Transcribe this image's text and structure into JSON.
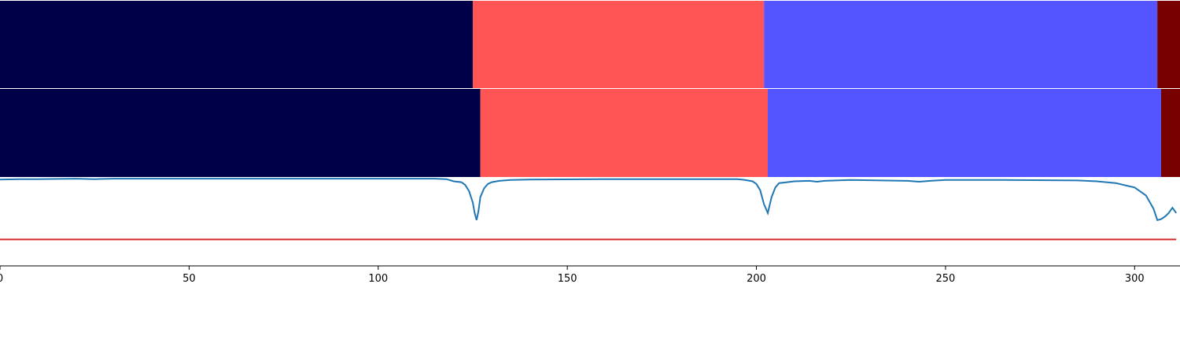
{
  "chart_data": {
    "type": "segmentation",
    "x_ticks": [
      0,
      50,
      100,
      150,
      200,
      250,
      300
    ],
    "xlim": [
      0,
      312
    ],
    "colors": {
      "class_0": "#000048",
      "class_1": "#ff5555",
      "class_2": "#5555ff",
      "class_3": "#780000",
      "curve": "#1f77b4",
      "threshold": "#d62728"
    },
    "bars": [
      {
        "segments": [
          {
            "start": 0,
            "end": 125,
            "class": "class_0"
          },
          {
            "start": 125,
            "end": 202,
            "class": "class_1"
          },
          {
            "start": 202,
            "end": 306,
            "class": "class_2"
          },
          {
            "start": 306,
            "end": 312,
            "class": "class_3"
          }
        ]
      },
      {
        "segments": [
          {
            "start": 0,
            "end": 127,
            "class": "class_0"
          },
          {
            "start": 127,
            "end": 203,
            "class": "class_1"
          },
          {
            "start": 203,
            "end": 307,
            "class": "class_2"
          },
          {
            "start": 307,
            "end": 312,
            "class": "class_3"
          }
        ]
      }
    ],
    "curve": {
      "ylim": [
        0,
        1
      ],
      "threshold": 0.3,
      "points": [
        [
          0,
          0.98
        ],
        [
          5,
          0.985
        ],
        [
          10,
          0.985
        ],
        [
          20,
          0.99
        ],
        [
          25,
          0.985
        ],
        [
          30,
          0.99
        ],
        [
          40,
          0.99
        ],
        [
          60,
          0.99
        ],
        [
          80,
          0.99
        ],
        [
          100,
          0.99
        ],
        [
          115,
          0.99
        ],
        [
          118,
          0.985
        ],
        [
          120,
          0.96
        ],
        [
          122,
          0.95
        ],
        [
          123,
          0.92
        ],
        [
          124,
          0.85
        ],
        [
          125,
          0.72
        ],
        [
          125.5,
          0.6
        ],
        [
          126,
          0.52
        ],
        [
          126.5,
          0.62
        ],
        [
          127,
          0.78
        ],
        [
          128,
          0.88
        ],
        [
          129,
          0.93
        ],
        [
          130,
          0.95
        ],
        [
          132,
          0.965
        ],
        [
          135,
          0.975
        ],
        [
          140,
          0.98
        ],
        [
          160,
          0.985
        ],
        [
          180,
          0.985
        ],
        [
          195,
          0.985
        ],
        [
          197,
          0.975
        ],
        [
          199,
          0.96
        ],
        [
          200,
          0.93
        ],
        [
          201,
          0.86
        ],
        [
          202,
          0.7
        ],
        [
          203,
          0.6
        ],
        [
          204,
          0.78
        ],
        [
          205,
          0.89
        ],
        [
          206,
          0.94
        ],
        [
          207,
          0.945
        ],
        [
          210,
          0.96
        ],
        [
          214,
          0.965
        ],
        [
          216,
          0.955
        ],
        [
          218,
          0.965
        ],
        [
          225,
          0.975
        ],
        [
          240,
          0.965
        ],
        [
          243,
          0.955
        ],
        [
          246,
          0.965
        ],
        [
          250,
          0.975
        ],
        [
          265,
          0.975
        ],
        [
          285,
          0.97
        ],
        [
          290,
          0.96
        ],
        [
          295,
          0.94
        ],
        [
          298,
          0.91
        ],
        [
          300,
          0.89
        ],
        [
          303,
          0.8
        ],
        [
          305,
          0.65
        ],
        [
          306,
          0.52
        ],
        [
          307,
          0.53
        ],
        [
          308,
          0.56
        ],
        [
          309,
          0.6
        ],
        [
          310,
          0.66
        ],
        [
          311,
          0.6
        ]
      ]
    }
  }
}
